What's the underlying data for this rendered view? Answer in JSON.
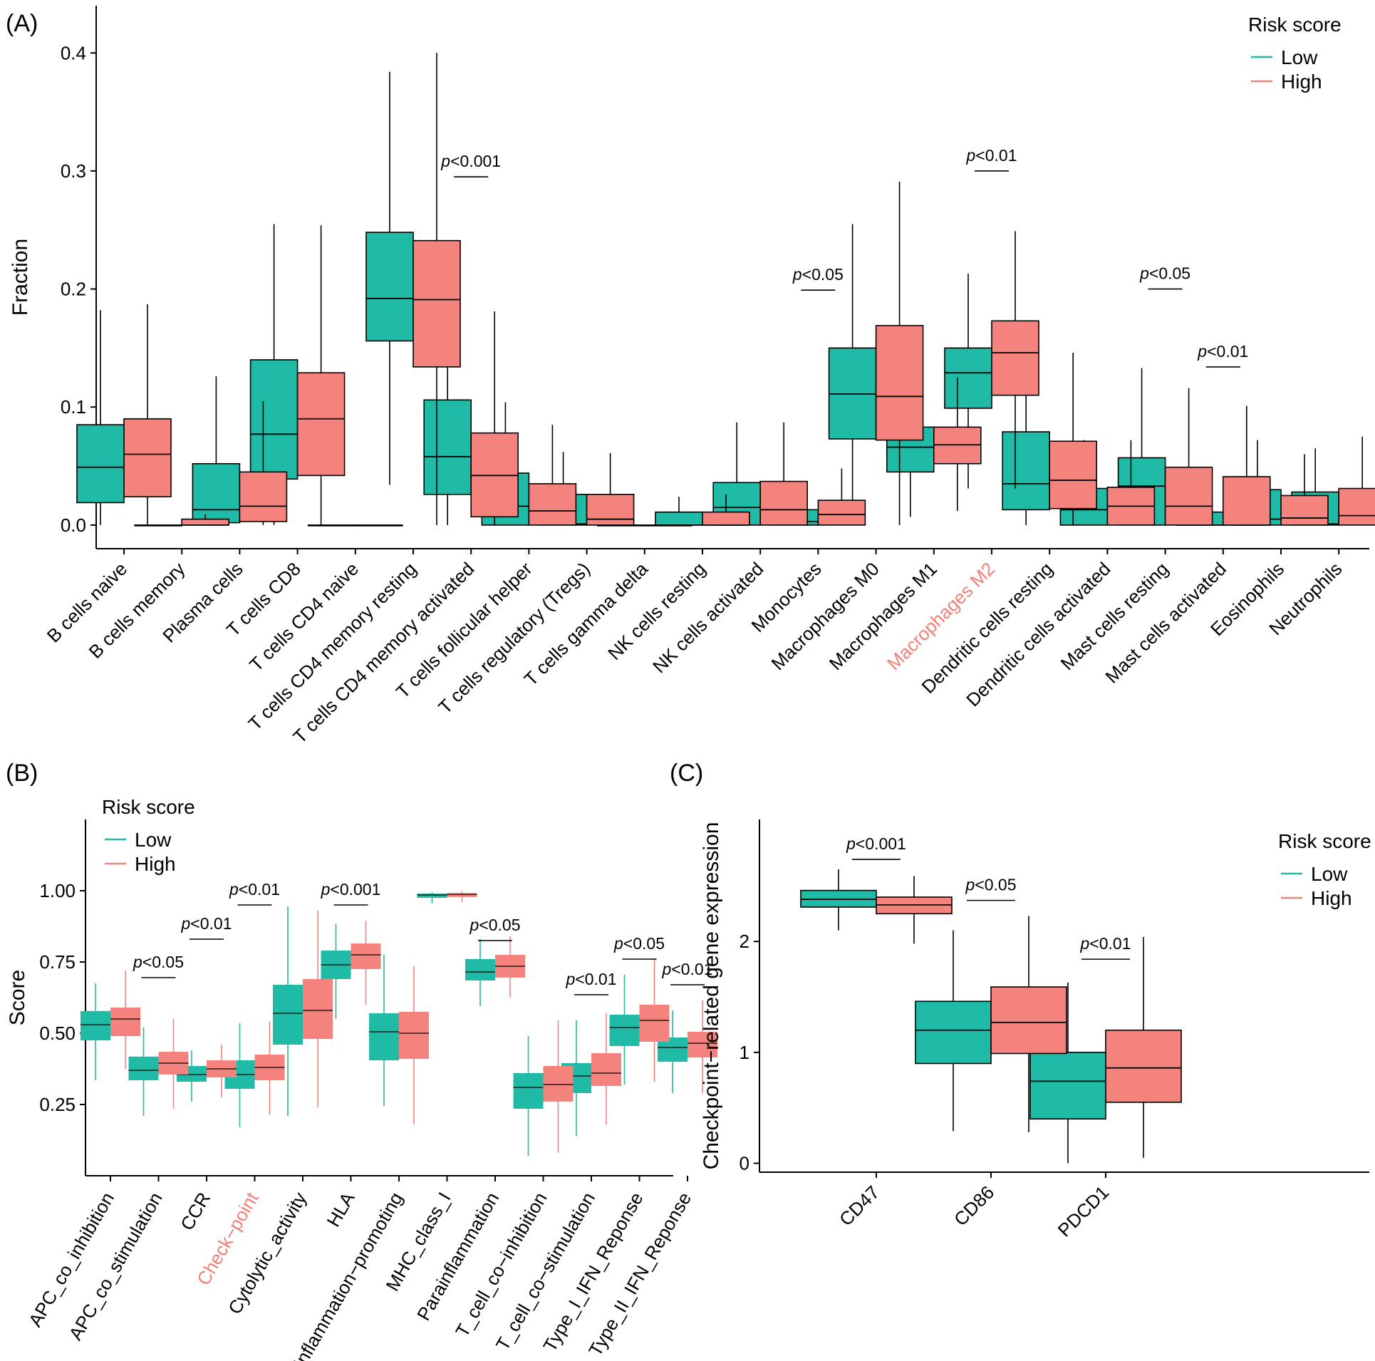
{
  "colors": {
    "low": "#20BBA7",
    "high": "#F4837D",
    "highlight": "#F08078"
  },
  "legend": {
    "title": "Risk score",
    "low": "Low",
    "high": "High"
  },
  "chart_data": [
    {
      "id": "A",
      "panel_label": "(A)",
      "type": "box",
      "ylabel": "Fraction",
      "ylim": [
        -0.02,
        0.44
      ],
      "yticks": [
        0.0,
        0.1,
        0.2,
        0.3,
        0.4
      ],
      "ytick_labels": [
        "0.0",
        "0.1",
        "0.2",
        "0.3",
        "0.4"
      ],
      "legend_position": "top-right",
      "categories": [
        "B cells naive",
        "B cells memory",
        "Plasma cells",
        "T cells CD8",
        "T cells CD4 naive",
        "T cells CD4 memory resting",
        "T cells CD4 memory activated",
        "T cells follicular helper",
        "T cells regulatory (Tregs)",
        "T cells gamma delta",
        "NK cells resting",
        "NK cells activated",
        "Monocytes",
        "Macrophages M0",
        "Macrophages M1",
        "Macrophages M2",
        "Dendritic cells resting",
        "Dendritic cells activated",
        "Mast cells resting",
        "Mast cells activated",
        "Eosinophils",
        "Neutrophils"
      ],
      "highlight_categories": [
        "Macrophages M2"
      ],
      "series": [
        {
          "name": "Low",
          "boxes": [
            [
              0.0,
              0.019,
              0.049,
              0.085,
              0.182
            ],
            [
              0.0,
              0.0,
              0.0,
              0.0,
              0.0
            ],
            [
              0.0,
              0.002,
              0.013,
              0.052,
              0.126
            ],
            [
              0.0,
              0.039,
              0.077,
              0.14,
              0.255
            ],
            [
              0.0,
              0.0,
              0.0,
              0.0,
              0.0
            ],
            [
              0.034,
              0.156,
              0.192,
              0.248,
              0.384
            ],
            [
              0.0,
              0.026,
              0.058,
              0.106,
              0.209
            ],
            [
              0.0,
              0.0,
              0.016,
              0.044,
              0.104
            ],
            [
              0.0,
              0.0,
              0.001,
              0.026,
              0.062
            ],
            [
              0.0,
              0.0,
              0.0,
              0.0,
              0.0
            ],
            [
              0.0,
              0.0,
              0.0,
              0.011,
              0.024
            ],
            [
              0.0,
              0.0,
              0.015,
              0.036,
              0.087
            ],
            [
              0.0,
              0.0,
              0.003,
              0.013,
              0.03
            ],
            [
              0.0,
              0.073,
              0.111,
              0.15,
              0.255
            ],
            [
              0.007,
              0.045,
              0.066,
              0.083,
              0.134
            ],
            [
              0.031,
              0.099,
              0.129,
              0.15,
              0.213
            ],
            [
              0.0,
              0.013,
              0.035,
              0.079,
              0.154
            ],
            [
              0.0,
              0.0,
              0.013,
              0.031,
              0.072
            ],
            [
              0.0,
              0.0,
              0.033,
              0.057,
              0.133
            ],
            [
              0.0,
              0.0,
              0.0,
              0.011,
              0.024
            ],
            [
              0.0,
              0.0,
              0.005,
              0.03,
              0.072
            ],
            [
              0.0,
              0.0,
              0.001,
              0.028,
              0.065
            ]
          ]
        },
        {
          "name": "High",
          "boxes": [
            [
              0.0,
              0.024,
              0.06,
              0.09,
              0.187
            ],
            [
              0.0,
              0.0,
              0.0,
              0.005,
              0.009
            ],
            [
              0.0,
              0.003,
              0.016,
              0.045,
              0.105
            ],
            [
              0.0,
              0.042,
              0.09,
              0.129,
              0.254
            ],
            [
              0.0,
              0.0,
              0.0,
              0.0,
              0.0
            ],
            [
              0.0,
              0.134,
              0.191,
              0.241,
              0.4
            ],
            [
              0.0,
              0.007,
              0.042,
              0.078,
              0.181
            ],
            [
              0.0,
              0.0,
              0.012,
              0.035,
              0.085
            ],
            [
              0.0,
              0.0,
              0.005,
              0.026,
              0.061
            ],
            [
              0.0,
              0.0,
              0.0,
              0.0,
              0.0
            ],
            [
              0.0,
              0.0,
              0.0,
              0.011,
              0.026
            ],
            [
              0.0,
              0.0,
              0.013,
              0.037,
              0.087
            ],
            [
              0.0,
              0.0,
              0.009,
              0.021,
              0.048
            ],
            [
              0.0,
              0.072,
              0.109,
              0.169,
              0.291
            ],
            [
              0.012,
              0.052,
              0.068,
              0.083,
              0.125
            ],
            [
              0.031,
              0.11,
              0.146,
              0.173,
              0.249
            ],
            [
              0.0,
              0.014,
              0.038,
              0.071,
              0.146
            ],
            [
              0.0,
              0.0,
              0.016,
              0.032,
              0.072
            ],
            [
              0.0,
              0.0,
              0.016,
              0.049,
              0.116
            ],
            [
              0.0,
              0.0,
              0.0,
              0.041,
              0.101
            ],
            [
              0.0,
              0.0,
              0.006,
              0.025,
              0.06
            ],
            [
              0.0,
              0.0,
              0.008,
              0.031,
              0.075
            ]
          ]
        }
      ],
      "annotations": [
        {
          "category": "T cells CD4 memory activated",
          "text": "p<0.001",
          "y": 0.295
        },
        {
          "category": "Monocytes",
          "text": "p<0.05",
          "y": 0.199
        },
        {
          "category": "Macrophages M2",
          "text": "p<0.01",
          "y": 0.3
        },
        {
          "category": "Mast cells resting",
          "text": "p<0.05",
          "y": 0.2
        },
        {
          "category": "Mast cells activated",
          "text": "p<0.01",
          "y": 0.134
        }
      ]
    },
    {
      "id": "B",
      "panel_label": "(B)",
      "type": "box",
      "ylabel": "Score",
      "ylim": [
        0.0,
        1.25
      ],
      "yticks": [
        0.25,
        0.5,
        0.75,
        1.0
      ],
      "ytick_labels": [
        "0.25",
        "0.50",
        "0.75",
        "1.00"
      ],
      "legend_position": "top-left",
      "categories": [
        "APC_co_inhibition",
        "APC_co_stimulation",
        "CCR",
        "Check−point",
        "Cytolytic_activity",
        "HLA",
        "Inflammation−promoting",
        "MHC_class_I",
        "Parainflammation",
        "T_cell_co−inhibition",
        "T_cell_co−stimulation",
        "Type_I_IFN_Reponse",
        "Type_II_IFN_Reponse"
      ],
      "highlight_categories": [
        "Check−point"
      ],
      "series": [
        {
          "name": "Low",
          "boxes": [
            [
              0.335,
              0.475,
              0.53,
              0.578,
              0.675
            ],
            [
              0.21,
              0.335,
              0.37,
              0.418,
              0.52
            ],
            [
              0.26,
              0.33,
              0.355,
              0.385,
              0.44
            ],
            [
              0.17,
              0.305,
              0.355,
              0.405,
              0.535
            ],
            [
              0.21,
              0.46,
              0.57,
              0.67,
              0.945
            ],
            [
              0.55,
              0.69,
              0.74,
              0.79,
              0.885
            ],
            [
              0.245,
              0.405,
              0.505,
              0.57,
              0.775
            ],
            [
              0.955,
              0.975,
              0.985,
              0.99,
              0.995
            ],
            [
              0.595,
              0.685,
              0.715,
              0.76,
              0.83
            ],
            [
              0.07,
              0.235,
              0.31,
              0.36,
              0.49
            ],
            [
              0.14,
              0.29,
              0.35,
              0.395,
              0.545
            ],
            [
              0.32,
              0.455,
              0.52,
              0.565,
              0.705
            ],
            [
              0.29,
              0.4,
              0.45,
              0.485,
              0.58
            ]
          ]
        },
        {
          "name": "High",
          "boxes": [
            [
              0.375,
              0.49,
              0.55,
              0.59,
              0.72
            ],
            [
              0.235,
              0.355,
              0.395,
              0.435,
              0.55
            ],
            [
              0.275,
              0.345,
              0.375,
              0.405,
              0.46
            ],
            [
              0.215,
              0.335,
              0.38,
              0.425,
              0.54
            ],
            [
              0.24,
              0.48,
              0.58,
              0.69,
              0.93
            ],
            [
              0.6,
              0.725,
              0.775,
              0.815,
              0.895
            ],
            [
              0.18,
              0.41,
              0.5,
              0.575,
              0.735
            ],
            [
              0.96,
              0.978,
              0.987,
              0.992,
              0.997
            ],
            [
              0.625,
              0.695,
              0.735,
              0.775,
              0.84
            ],
            [
              0.08,
              0.26,
              0.32,
              0.385,
              0.545
            ],
            [
              0.18,
              0.315,
              0.36,
              0.43,
              0.57
            ],
            [
              0.33,
              0.47,
              0.545,
              0.6,
              0.76
            ],
            [
              0.29,
              0.415,
              0.465,
              0.505,
              0.615
            ]
          ]
        }
      ],
      "annotations": [
        {
          "category": "APC_co_stimulation",
          "text": "p<0.05",
          "y": 0.695
        },
        {
          "category": "CCR",
          "text": "p<0.01",
          "y": 0.83
        },
        {
          "category": "Check−point",
          "text": "p<0.01",
          "y": 0.95
        },
        {
          "category": "HLA",
          "text": "p<0.001",
          "y": 0.95
        },
        {
          "category": "Parainflammation",
          "text": "p<0.05",
          "y": 0.825
        },
        {
          "category": "T_cell_co−stimulation",
          "text": "p<0.01",
          "y": 0.635
        },
        {
          "category": "Type_I_IFN_Reponse",
          "text": "p<0.05",
          "y": 0.76
        },
        {
          "category": "Type_II_IFN_Reponse",
          "text": "p<0.01",
          "y": 0.67
        }
      ]
    },
    {
      "id": "C",
      "panel_label": "(C)",
      "type": "box",
      "ylabel": "Checkpoint−related gene expression",
      "ylim": [
        -0.08,
        3.1
      ],
      "yticks": [
        0,
        1,
        2
      ],
      "ytick_labels": [
        "0",
        "1",
        "2"
      ],
      "legend_position": "right",
      "categories": [
        "CD47",
        "CD86",
        "PDCD1"
      ],
      "highlight_categories": [],
      "series": [
        {
          "name": "Low",
          "boxes": [
            [
              2.1,
              2.31,
              2.38,
              2.46,
              2.65
            ],
            [
              0.29,
              0.9,
              1.2,
              1.46,
              2.1
            ],
            [
              0.0,
              0.4,
              0.74,
              1.0,
              1.63
            ]
          ]
        },
        {
          "name": "High",
          "boxes": [
            [
              1.98,
              2.25,
              2.33,
              2.4,
              2.59
            ],
            [
              0.28,
              0.99,
              1.27,
              1.59,
              2.23
            ],
            [
              0.05,
              0.55,
              0.86,
              1.2,
              2.04
            ]
          ]
        }
      ],
      "annotations": [
        {
          "category": "CD47",
          "text": "p<0.001",
          "y": 2.74
        },
        {
          "category": "CD86",
          "text": "p<0.05",
          "y": 2.37
        },
        {
          "category": "PDCD1",
          "text": "p<0.01",
          "y": 1.84
        }
      ]
    }
  ]
}
